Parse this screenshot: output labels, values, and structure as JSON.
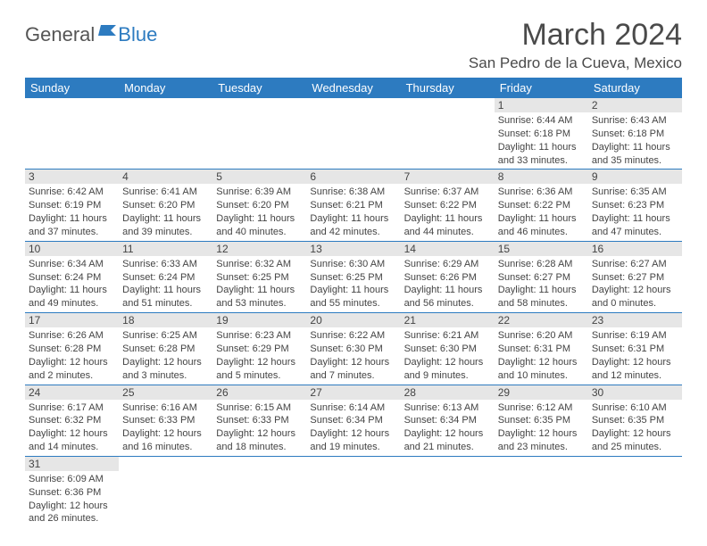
{
  "logo": {
    "part1": "General",
    "part2": "Blue"
  },
  "title": "March 2024",
  "location": "San Pedro de la Cueva, Mexico",
  "colors": {
    "primary": "#2d7bc0",
    "daynum_bg": "#e6e6e6",
    "text": "#3a3a3a",
    "white": "#ffffff"
  },
  "days_of_week": [
    "Sunday",
    "Monday",
    "Tuesday",
    "Wednesday",
    "Thursday",
    "Friday",
    "Saturday"
  ],
  "weeks": [
    [
      null,
      null,
      null,
      null,
      null,
      {
        "n": "1",
        "sr": "Sunrise: 6:44 AM",
        "ss": "Sunset: 6:18 PM",
        "d1": "Daylight: 11 hours",
        "d2": "and 33 minutes."
      },
      {
        "n": "2",
        "sr": "Sunrise: 6:43 AM",
        "ss": "Sunset: 6:18 PM",
        "d1": "Daylight: 11 hours",
        "d2": "and 35 minutes."
      }
    ],
    [
      {
        "n": "3",
        "sr": "Sunrise: 6:42 AM",
        "ss": "Sunset: 6:19 PM",
        "d1": "Daylight: 11 hours",
        "d2": "and 37 minutes."
      },
      {
        "n": "4",
        "sr": "Sunrise: 6:41 AM",
        "ss": "Sunset: 6:20 PM",
        "d1": "Daylight: 11 hours",
        "d2": "and 39 minutes."
      },
      {
        "n": "5",
        "sr": "Sunrise: 6:39 AM",
        "ss": "Sunset: 6:20 PM",
        "d1": "Daylight: 11 hours",
        "d2": "and 40 minutes."
      },
      {
        "n": "6",
        "sr": "Sunrise: 6:38 AM",
        "ss": "Sunset: 6:21 PM",
        "d1": "Daylight: 11 hours",
        "d2": "and 42 minutes."
      },
      {
        "n": "7",
        "sr": "Sunrise: 6:37 AM",
        "ss": "Sunset: 6:22 PM",
        "d1": "Daylight: 11 hours",
        "d2": "and 44 minutes."
      },
      {
        "n": "8",
        "sr": "Sunrise: 6:36 AM",
        "ss": "Sunset: 6:22 PM",
        "d1": "Daylight: 11 hours",
        "d2": "and 46 minutes."
      },
      {
        "n": "9",
        "sr": "Sunrise: 6:35 AM",
        "ss": "Sunset: 6:23 PM",
        "d1": "Daylight: 11 hours",
        "d2": "and 47 minutes."
      }
    ],
    [
      {
        "n": "10",
        "sr": "Sunrise: 6:34 AM",
        "ss": "Sunset: 6:24 PM",
        "d1": "Daylight: 11 hours",
        "d2": "and 49 minutes."
      },
      {
        "n": "11",
        "sr": "Sunrise: 6:33 AM",
        "ss": "Sunset: 6:24 PM",
        "d1": "Daylight: 11 hours",
        "d2": "and 51 minutes."
      },
      {
        "n": "12",
        "sr": "Sunrise: 6:32 AM",
        "ss": "Sunset: 6:25 PM",
        "d1": "Daylight: 11 hours",
        "d2": "and 53 minutes."
      },
      {
        "n": "13",
        "sr": "Sunrise: 6:30 AM",
        "ss": "Sunset: 6:25 PM",
        "d1": "Daylight: 11 hours",
        "d2": "and 55 minutes."
      },
      {
        "n": "14",
        "sr": "Sunrise: 6:29 AM",
        "ss": "Sunset: 6:26 PM",
        "d1": "Daylight: 11 hours",
        "d2": "and 56 minutes."
      },
      {
        "n": "15",
        "sr": "Sunrise: 6:28 AM",
        "ss": "Sunset: 6:27 PM",
        "d1": "Daylight: 11 hours",
        "d2": "and 58 minutes."
      },
      {
        "n": "16",
        "sr": "Sunrise: 6:27 AM",
        "ss": "Sunset: 6:27 PM",
        "d1": "Daylight: 12 hours",
        "d2": "and 0 minutes."
      }
    ],
    [
      {
        "n": "17",
        "sr": "Sunrise: 6:26 AM",
        "ss": "Sunset: 6:28 PM",
        "d1": "Daylight: 12 hours",
        "d2": "and 2 minutes."
      },
      {
        "n": "18",
        "sr": "Sunrise: 6:25 AM",
        "ss": "Sunset: 6:28 PM",
        "d1": "Daylight: 12 hours",
        "d2": "and 3 minutes."
      },
      {
        "n": "19",
        "sr": "Sunrise: 6:23 AM",
        "ss": "Sunset: 6:29 PM",
        "d1": "Daylight: 12 hours",
        "d2": "and 5 minutes."
      },
      {
        "n": "20",
        "sr": "Sunrise: 6:22 AM",
        "ss": "Sunset: 6:30 PM",
        "d1": "Daylight: 12 hours",
        "d2": "and 7 minutes."
      },
      {
        "n": "21",
        "sr": "Sunrise: 6:21 AM",
        "ss": "Sunset: 6:30 PM",
        "d1": "Daylight: 12 hours",
        "d2": "and 9 minutes."
      },
      {
        "n": "22",
        "sr": "Sunrise: 6:20 AM",
        "ss": "Sunset: 6:31 PM",
        "d1": "Daylight: 12 hours",
        "d2": "and 10 minutes."
      },
      {
        "n": "23",
        "sr": "Sunrise: 6:19 AM",
        "ss": "Sunset: 6:31 PM",
        "d1": "Daylight: 12 hours",
        "d2": "and 12 minutes."
      }
    ],
    [
      {
        "n": "24",
        "sr": "Sunrise: 6:17 AM",
        "ss": "Sunset: 6:32 PM",
        "d1": "Daylight: 12 hours",
        "d2": "and 14 minutes."
      },
      {
        "n": "25",
        "sr": "Sunrise: 6:16 AM",
        "ss": "Sunset: 6:33 PM",
        "d1": "Daylight: 12 hours",
        "d2": "and 16 minutes."
      },
      {
        "n": "26",
        "sr": "Sunrise: 6:15 AM",
        "ss": "Sunset: 6:33 PM",
        "d1": "Daylight: 12 hours",
        "d2": "and 18 minutes."
      },
      {
        "n": "27",
        "sr": "Sunrise: 6:14 AM",
        "ss": "Sunset: 6:34 PM",
        "d1": "Daylight: 12 hours",
        "d2": "and 19 minutes."
      },
      {
        "n": "28",
        "sr": "Sunrise: 6:13 AM",
        "ss": "Sunset: 6:34 PM",
        "d1": "Daylight: 12 hours",
        "d2": "and 21 minutes."
      },
      {
        "n": "29",
        "sr": "Sunrise: 6:12 AM",
        "ss": "Sunset: 6:35 PM",
        "d1": "Daylight: 12 hours",
        "d2": "and 23 minutes."
      },
      {
        "n": "30",
        "sr": "Sunrise: 6:10 AM",
        "ss": "Sunset: 6:35 PM",
        "d1": "Daylight: 12 hours",
        "d2": "and 25 minutes."
      }
    ],
    [
      {
        "n": "31",
        "sr": "Sunrise: 6:09 AM",
        "ss": "Sunset: 6:36 PM",
        "d1": "Daylight: 12 hours",
        "d2": "and 26 minutes."
      },
      null,
      null,
      null,
      null,
      null,
      null
    ]
  ]
}
